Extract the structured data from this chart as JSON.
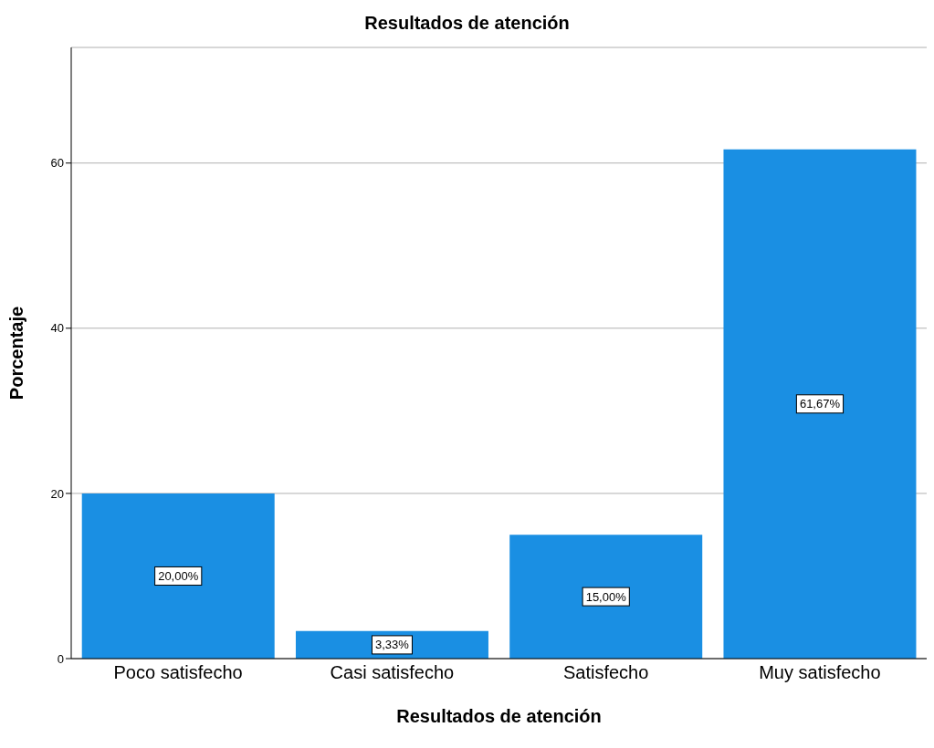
{
  "chart_data": {
    "type": "bar",
    "title": "Resultados de atención",
    "xlabel": "Resultados de atención",
    "ylabel": "Porcentaje",
    "categories": [
      "Poco satisfecho",
      "Casi satisfecho",
      "Satisfecho",
      "Muy satisfecho"
    ],
    "values": [
      20,
      3.33,
      15,
      61.67
    ],
    "value_labels": [
      "20,00%",
      "3,33%",
      "15,00%",
      "61,67%"
    ],
    "color": "#1a8fe3",
    "ylim": [
      0,
      74
    ],
    "yticks": [
      0,
      20,
      40,
      60
    ],
    "grid": "y"
  }
}
